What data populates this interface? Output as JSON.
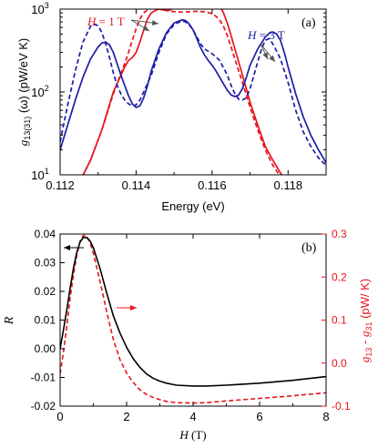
{
  "chart_data": [
    {
      "type": "line",
      "panel_label": "(a)",
      "xlabel": "Energy (eV)",
      "ylabel_main": "g",
      "ylabel_sub": "13(31)",
      "ylabel_rest": " (ω) (pW/eV K)",
      "xlim": [
        0.112,
        0.119
      ],
      "ylim": [
        10,
        1000
      ],
      "yscale": "log",
      "xticks": [
        0.112,
        0.114,
        0.116,
        0.118
      ],
      "xtick_labels": [
        "0.112",
        "0.114",
        "0.116",
        "0.118"
      ],
      "yticks": [
        10,
        100,
        1000
      ],
      "ytick_base": "10",
      "ytick_exponents": [
        "1",
        "2",
        "3"
      ],
      "annotations": {
        "h1_italic": "H",
        "h1_rest": " = 1 T",
        "h3_italic": "H",
        "h3_rest": " = 3 T"
      },
      "series": [
        {
          "color": "#e8141b",
          "dash": "solid",
          "x": [
            0.1125,
            0.1128,
            0.1131,
            0.1134,
            0.1137,
            0.1138,
            0.1139,
            0.114,
            0.1141,
            0.1142,
            0.1143,
            0.1144,
            0.1145,
            0.1146,
            0.1147,
            0.1148,
            0.1149,
            0.115,
            0.1151,
            0.1152,
            0.1153,
            0.1154,
            0.1155,
            0.1156,
            0.1157,
            0.1158,
            0.1159,
            0.116,
            0.1161,
            0.1162,
            0.1163,
            0.1164,
            0.1165,
            0.1166,
            0.1168,
            0.117,
            0.1172,
            0.1174,
            0.1176,
            0.1178,
            0.118
          ],
          "y": [
            8,
            15,
            35,
            100,
            200,
            240,
            260,
            300,
            400,
            560,
            760,
            900,
            960,
            1000,
            980,
            960,
            980,
            1040,
            1100,
            1120,
            1080,
            1020,
            1060,
            1110,
            1080,
            1000,
            1060,
            1150,
            1160,
            1100,
            900,
            680,
            480,
            330,
            160,
            75,
            40,
            22,
            15,
            10.5,
            8
          ]
        },
        {
          "color": "#e8141b",
          "dash": "dashed",
          "x": [
            0.1125,
            0.1128,
            0.1131,
            0.1134,
            0.1137,
            0.1138,
            0.1139,
            0.114,
            0.1141,
            0.1142,
            0.1143,
            0.1144,
            0.1145,
            0.1146,
            0.1147,
            0.1148,
            0.115,
            0.1152,
            0.1154,
            0.1156,
            0.1158,
            0.116,
            0.1161,
            0.1162,
            0.1163,
            0.1164,
            0.1165,
            0.1166,
            0.1168,
            0.117,
            0.1172,
            0.1174,
            0.1176,
            0.1178,
            0.118
          ],
          "y": [
            8,
            15,
            35,
            95,
            220,
            300,
            420,
            580,
            760,
            900,
            980,
            1010,
            1020,
            1010,
            990,
            960,
            930,
            920,
            930,
            940,
            930,
            880,
            820,
            740,
            620,
            480,
            350,
            250,
            130,
            65,
            35,
            20,
            13,
            9.5,
            8
          ]
        },
        {
          "color": "#1c1ca8",
          "dash": "solid",
          "x": [
            0.112,
            0.1122,
            0.1124,
            0.1126,
            0.1128,
            0.113,
            0.1131,
            0.1132,
            0.1133,
            0.1134,
            0.1135,
            0.1136,
            0.1137,
            0.1138,
            0.1139,
            0.114,
            0.1141,
            0.1142,
            0.1143,
            0.1144,
            0.1146,
            0.1148,
            0.115,
            0.1152,
            0.1153,
            0.1154,
            0.1155,
            0.1156,
            0.1157,
            0.1158,
            0.1159,
            0.116,
            0.1161,
            0.1162,
            0.1163,
            0.1164,
            0.1165,
            0.1166,
            0.1167,
            0.1168,
            0.1169,
            0.117,
            0.1172,
            0.1174,
            0.1175,
            0.1176,
            0.1177,
            0.1178,
            0.1179,
            0.118,
            0.1182,
            0.1184,
            0.1186,
            0.1188,
            0.119
          ],
          "y": [
            20,
            40,
            80,
            150,
            250,
            350,
            390,
            400,
            370,
            300,
            220,
            160,
            120,
            90,
            72,
            65,
            68,
            85,
            120,
            180,
            330,
            520,
            680,
            740,
            730,
            660,
            560,
            440,
            340,
            280,
            240,
            210,
            180,
            150,
            125,
            105,
            92,
            88,
            92,
            110,
            150,
            210,
            330,
            460,
            510,
            530,
            500,
            420,
            300,
            200,
            95,
            50,
            30,
            20,
            14
          ]
        },
        {
          "color": "#1c1ca8",
          "dash": "dashed",
          "x": [
            0.112,
            0.1122,
            0.1124,
            0.1126,
            0.1128,
            0.1129,
            0.113,
            0.1131,
            0.1132,
            0.1133,
            0.1134,
            0.1135,
            0.1136,
            0.1137,
            0.1138,
            0.1139,
            0.114,
            0.1141,
            0.1142,
            0.1144,
            0.1146,
            0.1148,
            0.115,
            0.1152,
            0.1153,
            0.1154,
            0.1155,
            0.1156,
            0.1157,
            0.1158,
            0.116,
            0.1162,
            0.1164,
            0.1165,
            0.1166,
            0.1167,
            0.1168,
            0.1169,
            0.117,
            0.1172,
            0.1173,
            0.1174,
            0.1175,
            0.1176,
            0.1177,
            0.1178,
            0.118,
            0.1182,
            0.1184,
            0.1186,
            0.1188,
            0.119
          ],
          "y": [
            25,
            70,
            180,
            400,
            620,
            660,
            630,
            520,
            380,
            260,
            170,
            120,
            95,
            80,
            72,
            68,
            70,
            80,
            100,
            160,
            300,
            500,
            650,
            720,
            700,
            640,
            560,
            460,
            380,
            330,
            290,
            240,
            160,
            120,
            95,
            82,
            80,
            85,
            110,
            230,
            330,
            420,
            440,
            380,
            310,
            250,
            130,
            60,
            33,
            22,
            16,
            13
          ]
        }
      ]
    },
    {
      "type": "line",
      "panel_label": "(b)",
      "xlabel_italic": "H",
      "xlabel_rest": " (T)",
      "ylabel_left": "R",
      "ylabel_right_g1": "g",
      "ylabel_right_s1": "13",
      "ylabel_right_mid": " - ",
      "ylabel_right_g2": "g",
      "ylabel_right_s2": "31",
      "ylabel_right_rest": "  (pW/ K)",
      "xlim": [
        0,
        8
      ],
      "ylim_left": [
        -0.02,
        0.04
      ],
      "ylim_right": [
        -0.1,
        0.3
      ],
      "xticks": [
        0,
        2,
        4,
        6,
        8
      ],
      "xtick_labels": [
        "0",
        "2",
        "4",
        "6",
        "8"
      ],
      "yticks_left": [
        -0.02,
        -0.01,
        0.0,
        0.01,
        0.02,
        0.03,
        0.04
      ],
      "ytick_labels_left": [
        "-0.02",
        "-0.01",
        "0.00",
        "0.01",
        "0.02",
        "0.03",
        "0.04"
      ],
      "yticks_right": [
        -0.1,
        0.0,
        0.1,
        0.2,
        0.3
      ],
      "ytick_labels_right": [
        "-0.1",
        "0.0",
        "0.1",
        "0.2",
        "0.3"
      ],
      "series": [
        {
          "color": "#000000",
          "dash": "solid",
          "axis": "left",
          "x": [
            0,
            0.1,
            0.2,
            0.3,
            0.4,
            0.5,
            0.6,
            0.7,
            0.8,
            0.9,
            1.0,
            1.2,
            1.4,
            1.6,
            1.8,
            2.0,
            2.2,
            2.4,
            2.6,
            2.8,
            3.0,
            3.2,
            3.5,
            4.0,
            4.4,
            5.0,
            6.0,
            7.0,
            8.0
          ],
          "y": [
            0.0,
            0.0065,
            0.0135,
            0.021,
            0.028,
            0.0335,
            0.0372,
            0.0388,
            0.0388,
            0.0376,
            0.0352,
            0.028,
            0.0195,
            0.0115,
            0.0055,
            0.0005,
            -0.0035,
            -0.0065,
            -0.0088,
            -0.0103,
            -0.0113,
            -0.012,
            -0.0127,
            -0.013,
            -0.013,
            -0.0127,
            -0.012,
            -0.011,
            -0.0097
          ]
        },
        {
          "color": "#e8141b",
          "dash": "dashed",
          "axis": "right",
          "x": [
            0,
            0.1,
            0.2,
            0.3,
            0.4,
            0.5,
            0.6,
            0.7,
            0.8,
            0.9,
            1.0,
            1.2,
            1.4,
            1.6,
            1.8,
            2.0,
            2.2,
            2.4,
            2.6,
            2.8,
            3.0,
            3.2,
            3.5,
            4.0,
            4.4,
            5.0,
            6.0,
            7.0,
            8.0
          ],
          "y": [
            -0.025,
            0.025,
            0.085,
            0.15,
            0.205,
            0.25,
            0.283,
            0.297,
            0.295,
            0.28,
            0.255,
            0.19,
            0.12,
            0.055,
            0.008,
            -0.023,
            -0.045,
            -0.062,
            -0.073,
            -0.08,
            -0.085,
            -0.089,
            -0.092,
            -0.093,
            -0.092,
            -0.088,
            -0.082,
            -0.076,
            -0.069
          ]
        }
      ]
    }
  ]
}
